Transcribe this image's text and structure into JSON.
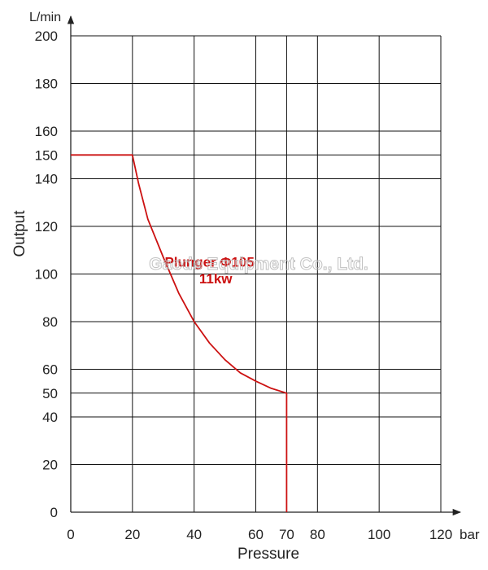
{
  "chart_data": {
    "type": "line",
    "y_unit": "L/min",
    "x_unit": "bar",
    "xlabel": "Pressure",
    "ylabel": "Output",
    "xlim": [
      0,
      120
    ],
    "ylim": [
      0,
      200
    ],
    "x_grid": [
      0,
      20,
      40,
      60,
      80,
      100,
      120
    ],
    "y_grid": [
      0,
      20,
      40,
      60,
      80,
      100,
      120,
      140,
      160,
      180,
      200
    ],
    "x_ticks": [
      0,
      20,
      40,
      60,
      70,
      80,
      100,
      120
    ],
    "y_ticks": [
      0,
      20,
      40,
      50,
      60,
      80,
      100,
      120,
      140,
      150,
      160,
      180,
      200
    ],
    "ref_lines": {
      "y": [
        150,
        50
      ],
      "x": [
        70
      ]
    },
    "grid": true,
    "series": [
      {
        "name": "Plunger Φ105 11kw",
        "color": "#cc1111",
        "points": [
          [
            0,
            150
          ],
          [
            20,
            150
          ],
          [
            22,
            138
          ],
          [
            25,
            123
          ],
          [
            30,
            107
          ],
          [
            35,
            92
          ],
          [
            40,
            80
          ],
          [
            45,
            71
          ],
          [
            50,
            64
          ],
          [
            55,
            58.5
          ],
          [
            60,
            55
          ],
          [
            65,
            52
          ],
          [
            70,
            50
          ],
          [
            70,
            0
          ]
        ]
      }
    ],
    "annotations": [
      {
        "text": "Plunger Φ105",
        "x": 45,
        "y": 103,
        "color": "#cc1111"
      },
      {
        "text": "11kw",
        "x": 47,
        "y": 96,
        "color": "#cc1111"
      }
    ],
    "watermark": "Gaode Equipment Co., Ltd."
  }
}
